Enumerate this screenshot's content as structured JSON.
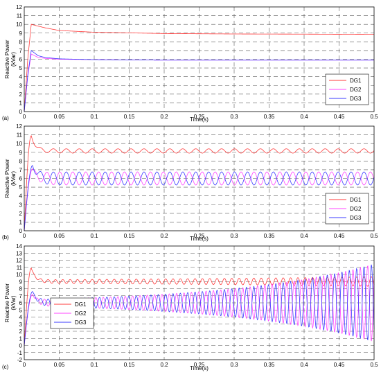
{
  "chart_data": [
    {
      "type": "line",
      "panel_label": "(a)",
      "xlabel": "Time(s)",
      "ylabel": "Reactive Power (kVar)",
      "xlim": [
        0,
        0.5
      ],
      "ylim": [
        0,
        12
      ],
      "xticks": [
        "0",
        "0.05",
        "0.1",
        "0.15",
        "0.2",
        "0.25",
        "0.3",
        "0.35",
        "0.4",
        "0.45",
        "0.5"
      ],
      "yticks": [
        "0",
        "1",
        "2",
        "3",
        "4",
        "5",
        "6",
        "7",
        "8",
        "9",
        "10",
        "11",
        "12"
      ],
      "grid": true,
      "legend_position": "bottom-right",
      "series": [
        {
          "name": "DG1",
          "color": "#ff3b3b",
          "line_style": "solid",
          "x": [
            0,
            0.005,
            0.01,
            0.015,
            0.02,
            0.03,
            0.05,
            0.1,
            0.2,
            0.3,
            0.4,
            0.5
          ],
          "y": [
            0,
            6,
            10,
            9.9,
            9.8,
            9.6,
            9.3,
            9.1,
            8.95,
            8.9,
            8.88,
            8.85
          ]
        },
        {
          "name": "DG2",
          "color": "#ff44ff",
          "line_style": "solid",
          "x": [
            0,
            0.005,
            0.01,
            0.015,
            0.02,
            0.03,
            0.05,
            0.1,
            0.2,
            0.3,
            0.4,
            0.5
          ],
          "y": [
            0,
            4,
            6.6,
            6.4,
            6.2,
            6.1,
            6.0,
            5.95,
            5.9,
            5.9,
            5.9,
            5.9
          ]
        },
        {
          "name": "DG3",
          "color": "#3b3bff",
          "line_style": "solid",
          "x": [
            0,
            0.005,
            0.01,
            0.015,
            0.02,
            0.03,
            0.05,
            0.1,
            0.2,
            0.3,
            0.4,
            0.5
          ],
          "y": [
            0,
            4.2,
            7.0,
            6.7,
            6.4,
            6.2,
            6.05,
            5.95,
            5.9,
            5.9,
            5.9,
            5.9
          ]
        }
      ]
    },
    {
      "type": "line",
      "panel_label": "(b)",
      "xlabel": "Time(s)",
      "ylabel": "Reactive Power (kVar)",
      "xlim": [
        0,
        0.5
      ],
      "ylim": [
        0,
        12
      ],
      "xticks": [
        "0",
        "0.05",
        "0.1",
        "0.15",
        "0.2",
        "0.25",
        "0.3",
        "0.35",
        "0.4",
        "0.45",
        "0.5"
      ],
      "yticks": [
        "0",
        "1",
        "2",
        "3",
        "4",
        "5",
        "6",
        "7",
        "8",
        "9",
        "10",
        "11",
        "12"
      ],
      "grid": true,
      "legend_position": "bottom-right",
      "series": [
        {
          "name": "DG1",
          "color": "#ff3b3b",
          "line_style": "solid",
          "start": 0,
          "peak": 10.9,
          "peak_t": 0.01,
          "steady": 9.15,
          "osc_amp": 0.25,
          "osc_period": 0.0185,
          "osc_growth": 0,
          "osc_phase": 0
        },
        {
          "name": "DG2",
          "color": "#ff44ff",
          "line_style": "solid",
          "start": 0,
          "peak": 7.1,
          "peak_t": 0.012,
          "steady": 6.0,
          "osc_amp": 0.75,
          "osc_period": 0.0185,
          "osc_growth": 0,
          "osc_phase": 3.14
        },
        {
          "name": "DG3",
          "color": "#3b3bff",
          "line_style": "solid",
          "start": 0,
          "peak": 7.5,
          "peak_t": 0.012,
          "steady": 6.0,
          "osc_amp": 0.75,
          "osc_period": 0.0185,
          "osc_growth": 0,
          "osc_phase": 0
        }
      ]
    },
    {
      "type": "line",
      "panel_label": "(c)",
      "xlabel": "Time(s)",
      "ylabel": "Reactive Power (kVar)",
      "xlim": [
        0,
        0.5
      ],
      "ylim": [
        -2,
        14
      ],
      "xticks": [
        "0",
        "0.05",
        "0.1",
        "0.15",
        "0.2",
        "0.25",
        "0.3",
        "0.35",
        "0.4",
        "0.45",
        "0.5"
      ],
      "yticks": [
        "-2",
        "-1",
        "0",
        "1",
        "2",
        "3",
        "4",
        "5",
        "6",
        "7",
        "8",
        "9",
        "10",
        "11",
        "12",
        "13",
        "14"
      ],
      "grid": true,
      "legend_position": "bottom-left",
      "series": [
        {
          "name": "DG1",
          "color": "#ff3b3b",
          "line_style": "solid",
          "start": 0,
          "peak": 10.9,
          "peak_t": 0.01,
          "steady": 9.0,
          "osc_amp": 0.25,
          "osc_period": 0.0105,
          "osc_growth": 2.0,
          "osc_phase": 0
        },
        {
          "name": "DG2",
          "color": "#ff44ff",
          "line_style": "solid",
          "start": 0,
          "peak": 7.2,
          "peak_t": 0.012,
          "steady": 6.0,
          "osc_amp": 0.45,
          "osc_period": 0.0105,
          "osc_growth": 5.0,
          "osc_phase": 3.14
        },
        {
          "name": "DG3",
          "color": "#3b3bff",
          "line_style": "solid",
          "start": 0,
          "peak": 7.6,
          "peak_t": 0.012,
          "steady": 6.0,
          "osc_amp": 0.45,
          "osc_period": 0.0105,
          "osc_growth": 5.0,
          "osc_phase": 0
        }
      ]
    }
  ]
}
